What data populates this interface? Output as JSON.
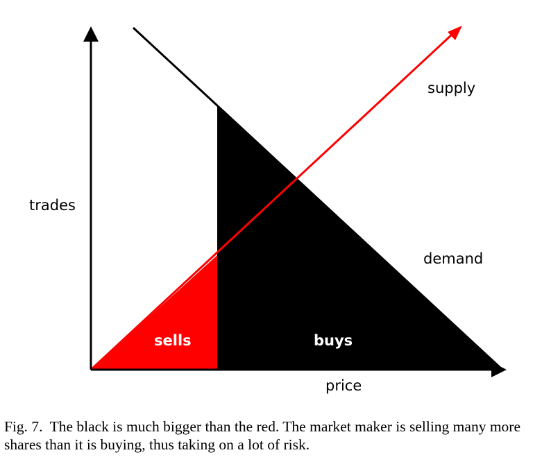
{
  "diagram": {
    "labels": {
      "y_axis": "trades",
      "x_axis": "price",
      "supply": "supply",
      "demand": "demand",
      "sells": "sells",
      "buys": "buys"
    },
    "colors": {
      "sells_region": "#ff0000",
      "buys_region": "#000000",
      "supply_line": "#ff0000",
      "demand_line": "#000000",
      "axes": "#000000"
    }
  },
  "caption": {
    "figure_number": "Fig. 7.",
    "text": "The black is much bigger than the red. The market maker is selling many more shares than it is buying, thus taking on a lot of risk."
  }
}
